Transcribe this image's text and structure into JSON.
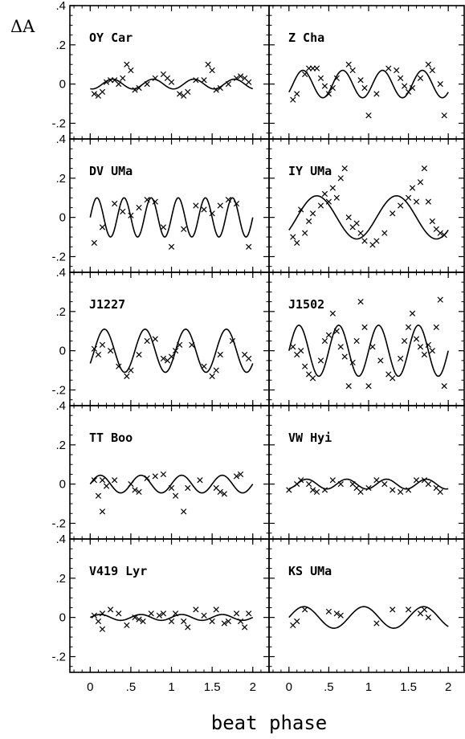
{
  "figure": {
    "ylabel": "ΔA",
    "xlabel": "beat phase"
  },
  "chart_data": {
    "type": "scatter",
    "layout": "5x2 panel grid",
    "xlim": [
      -0.25,
      2.2
    ],
    "ylim": [
      -0.28,
      0.4
    ],
    "x_ticks": [
      0,
      0.5,
      1,
      1.5,
      2
    ],
    "x_tick_labels": [
      "0",
      ".5",
      "1",
      "1.5",
      "2"
    ],
    "y_ticks": [
      -0.2,
      0,
      0.2,
      0.4
    ],
    "y_tick_labels": [
      "-.2",
      "0",
      ".2",
      ".4"
    ],
    "marker": "x",
    "panels": [
      {
        "name": "OY Car",
        "amp": 0.025,
        "phi": 0.15,
        "freq": 2,
        "points": [
          [
            0.05,
            -0.05
          ],
          [
            0.1,
            -0.06
          ],
          [
            0.15,
            -0.04
          ],
          [
            0.2,
            0.01
          ],
          [
            0.25,
            0.02
          ],
          [
            0.3,
            0.02
          ],
          [
            0.35,
            0.0
          ],
          [
            0.4,
            0.03
          ],
          [
            0.45,
            0.1
          ],
          [
            0.5,
            0.07
          ],
          [
            0.55,
            -0.03
          ],
          [
            0.6,
            -0.02
          ],
          [
            0.7,
            0.0
          ],
          [
            0.8,
            0.03
          ],
          [
            0.9,
            0.05
          ],
          [
            0.95,
            0.03
          ],
          [
            1.0,
            0.01
          ],
          [
            1.1,
            -0.05
          ],
          [
            1.15,
            -0.06
          ],
          [
            1.2,
            -0.04
          ],
          [
            1.3,
            0.02
          ],
          [
            1.4,
            0.02
          ],
          [
            1.45,
            0.1
          ],
          [
            1.5,
            0.07
          ],
          [
            1.55,
            -0.03
          ],
          [
            1.6,
            -0.02
          ],
          [
            1.7,
            0.0
          ],
          [
            1.8,
            0.03
          ],
          [
            1.85,
            0.04
          ],
          [
            1.9,
            0.03
          ],
          [
            1.95,
            0.01
          ]
        ]
      },
      {
        "name": "Z Cha",
        "amp": 0.07,
        "phi": 0.05,
        "freq": 2,
        "points": [
          [
            0.05,
            -0.08
          ],
          [
            0.1,
            -0.05
          ],
          [
            0.2,
            0.05
          ],
          [
            0.25,
            0.08
          ],
          [
            0.3,
            0.08
          ],
          [
            0.35,
            0.08
          ],
          [
            0.4,
            0.03
          ],
          [
            0.45,
            -0.01
          ],
          [
            0.5,
            -0.05
          ],
          [
            0.55,
            -0.02
          ],
          [
            0.6,
            0.03
          ],
          [
            0.75,
            0.1
          ],
          [
            0.8,
            0.07
          ],
          [
            0.9,
            0.02
          ],
          [
            0.95,
            -0.02
          ],
          [
            1.0,
            -0.16
          ],
          [
            1.1,
            -0.05
          ],
          [
            1.25,
            0.08
          ],
          [
            1.35,
            0.07
          ],
          [
            1.4,
            0.03
          ],
          [
            1.45,
            -0.01
          ],
          [
            1.5,
            -0.04
          ],
          [
            1.55,
            -0.02
          ],
          [
            1.65,
            0.03
          ],
          [
            1.75,
            0.1
          ],
          [
            1.8,
            0.07
          ],
          [
            1.9,
            0.0
          ],
          [
            1.95,
            -0.16
          ]
        ]
      },
      {
        "name": "DV UMa",
        "amp": 0.1,
        "phi": 0.0,
        "freq": 3,
        "points": [
          [
            0.05,
            -0.13
          ],
          [
            0.15,
            -0.05
          ],
          [
            0.3,
            0.07
          ],
          [
            0.4,
            0.03
          ],
          [
            0.5,
            0.01
          ],
          [
            0.6,
            0.05
          ],
          [
            0.7,
            0.09
          ],
          [
            0.8,
            0.08
          ],
          [
            0.9,
            -0.05
          ],
          [
            1.0,
            -0.15
          ],
          [
            1.15,
            -0.06
          ],
          [
            1.3,
            0.06
          ],
          [
            1.4,
            0.04
          ],
          [
            1.5,
            0.02
          ],
          [
            1.6,
            0.06
          ],
          [
            1.7,
            0.09
          ],
          [
            1.8,
            0.07
          ],
          [
            1.95,
            -0.15
          ]
        ]
      },
      {
        "name": "IY UMa",
        "amp": 0.11,
        "phi": 0.1,
        "freq": 1,
        "points": [
          [
            0.05,
            -0.1
          ],
          [
            0.1,
            -0.13
          ],
          [
            0.15,
            0.04
          ],
          [
            0.2,
            -0.08
          ],
          [
            0.25,
            -0.02
          ],
          [
            0.3,
            0.02
          ],
          [
            0.4,
            0.06
          ],
          [
            0.45,
            0.12
          ],
          [
            0.5,
            0.08
          ],
          [
            0.55,
            0.15
          ],
          [
            0.6,
            0.1
          ],
          [
            0.65,
            0.2
          ],
          [
            0.7,
            0.25
          ],
          [
            0.75,
            0.0
          ],
          [
            0.8,
            -0.05
          ],
          [
            0.85,
            -0.03
          ],
          [
            0.9,
            -0.08
          ],
          [
            0.95,
            -0.12
          ],
          [
            1.05,
            -0.14
          ],
          [
            1.1,
            -0.12
          ],
          [
            1.2,
            -0.08
          ],
          [
            1.3,
            0.02
          ],
          [
            1.4,
            0.06
          ],
          [
            1.5,
            0.1
          ],
          [
            1.55,
            0.15
          ],
          [
            1.6,
            0.08
          ],
          [
            1.65,
            0.18
          ],
          [
            1.7,
            0.25
          ],
          [
            1.75,
            0.08
          ],
          [
            1.8,
            -0.02
          ],
          [
            1.85,
            -0.06
          ],
          [
            1.9,
            -0.08
          ],
          [
            1.95,
            -0.09
          ]
        ]
      },
      {
        "name": "J1227",
        "amp": 0.11,
        "phi": 0.05,
        "freq": 2,
        "points": [
          [
            0.05,
            0.01
          ],
          [
            0.1,
            -0.02
          ],
          [
            0.15,
            0.03
          ],
          [
            0.25,
            0.0
          ],
          [
            0.35,
            -0.08
          ],
          [
            0.45,
            -0.13
          ],
          [
            0.5,
            -0.1
          ],
          [
            0.6,
            -0.02
          ],
          [
            0.7,
            0.05
          ],
          [
            0.8,
            0.06
          ],
          [
            0.9,
            -0.04
          ],
          [
            0.95,
            -0.05
          ],
          [
            1.0,
            -0.03
          ],
          [
            1.05,
            0.0
          ],
          [
            1.1,
            0.03
          ],
          [
            1.25,
            0.03
          ],
          [
            1.4,
            -0.08
          ],
          [
            1.5,
            -0.13
          ],
          [
            1.55,
            -0.1
          ],
          [
            1.6,
            -0.02
          ],
          [
            1.75,
            0.05
          ],
          [
            1.9,
            -0.02
          ],
          [
            1.95,
            -0.04
          ]
        ]
      },
      {
        "name": "J1502",
        "amp": 0.13,
        "phi": 0.0,
        "freq": 2,
        "points": [
          [
            0.05,
            0.02
          ],
          [
            0.1,
            -0.02
          ],
          [
            0.15,
            0.0
          ],
          [
            0.2,
            -0.08
          ],
          [
            0.25,
            -0.12
          ],
          [
            0.3,
            -0.14
          ],
          [
            0.4,
            -0.05
          ],
          [
            0.45,
            0.05
          ],
          [
            0.5,
            0.08
          ],
          [
            0.55,
            0.19
          ],
          [
            0.6,
            0.1
          ],
          [
            0.65,
            0.02
          ],
          [
            0.7,
            -0.03
          ],
          [
            0.75,
            -0.18
          ],
          [
            0.8,
            -0.06
          ],
          [
            0.85,
            0.05
          ],
          [
            0.9,
            0.25
          ],
          [
            0.95,
            0.12
          ],
          [
            1.0,
            -0.18
          ],
          [
            1.05,
            0.02
          ],
          [
            1.15,
            -0.05
          ],
          [
            1.25,
            -0.12
          ],
          [
            1.3,
            -0.14
          ],
          [
            1.4,
            -0.04
          ],
          [
            1.45,
            0.05
          ],
          [
            1.5,
            0.12
          ],
          [
            1.55,
            0.19
          ],
          [
            1.6,
            0.06
          ],
          [
            1.65,
            0.02
          ],
          [
            1.7,
            -0.02
          ],
          [
            1.75,
            0.03
          ],
          [
            1.8,
            0.0
          ],
          [
            1.85,
            0.12
          ],
          [
            1.9,
            0.26
          ],
          [
            1.95,
            -0.18
          ]
        ]
      },
      {
        "name": "TT Boo",
        "amp": 0.045,
        "phi": 0.0,
        "freq": 2,
        "points": [
          [
            0.05,
            0.02
          ],
          [
            0.1,
            -0.06
          ],
          [
            0.15,
            0.02
          ],
          [
            0.2,
            -0.01
          ],
          [
            0.15,
            -0.14
          ],
          [
            0.3,
            0.02
          ],
          [
            0.5,
            0.0
          ],
          [
            0.55,
            -0.03
          ],
          [
            0.6,
            -0.04
          ],
          [
            0.7,
            0.03
          ],
          [
            0.8,
            0.04
          ],
          [
            0.9,
            0.05
          ],
          [
            1.0,
            -0.02
          ],
          [
            1.05,
            -0.06
          ],
          [
            1.15,
            -0.14
          ],
          [
            1.2,
            -0.02
          ],
          [
            1.35,
            0.02
          ],
          [
            1.55,
            -0.02
          ],
          [
            1.6,
            -0.04
          ],
          [
            1.65,
            -0.05
          ],
          [
            1.8,
            0.04
          ],
          [
            1.85,
            0.05
          ]
        ]
      },
      {
        "name": "VW Hyi",
        "amp": 0.025,
        "phi": 0.1,
        "freq": 2,
        "points": [
          [
            0.0,
            -0.03
          ],
          [
            0.1,
            0.0
          ],
          [
            0.15,
            0.02
          ],
          [
            0.25,
            0.0
          ],
          [
            0.3,
            -0.03
          ],
          [
            0.35,
            -0.04
          ],
          [
            0.45,
            -0.03
          ],
          [
            0.55,
            0.02
          ],
          [
            0.65,
            0.0
          ],
          [
            0.8,
            0.0
          ],
          [
            0.85,
            -0.02
          ],
          [
            0.9,
            -0.04
          ],
          [
            1.0,
            -0.02
          ],
          [
            1.1,
            0.02
          ],
          [
            1.2,
            0.0
          ],
          [
            1.3,
            -0.03
          ],
          [
            1.4,
            -0.04
          ],
          [
            1.5,
            -0.03
          ],
          [
            1.6,
            0.02
          ],
          [
            1.7,
            0.02
          ],
          [
            1.75,
            0.0
          ],
          [
            1.85,
            -0.02
          ],
          [
            1.9,
            -0.04
          ]
        ]
      },
      {
        "name": "V419 Lyr",
        "amp": 0.015,
        "phi": 0.0,
        "freq": 2,
        "points": [
          [
            0.05,
            0.01
          ],
          [
            0.1,
            -0.02
          ],
          [
            0.15,
            0.02
          ],
          [
            0.15,
            -0.06
          ],
          [
            0.25,
            0.04
          ],
          [
            0.35,
            0.02
          ],
          [
            0.45,
            -0.04
          ],
          [
            0.55,
            0.0
          ],
          [
            0.6,
            -0.01
          ],
          [
            0.65,
            -0.02
          ],
          [
            0.75,
            0.02
          ],
          [
            0.85,
            0.01
          ],
          [
            0.9,
            0.02
          ],
          [
            1.0,
            -0.02
          ],
          [
            1.05,
            0.02
          ],
          [
            1.15,
            -0.02
          ],
          [
            1.2,
            -0.05
          ],
          [
            1.3,
            0.04
          ],
          [
            1.4,
            0.01
          ],
          [
            1.5,
            -0.02
          ],
          [
            1.55,
            0.04
          ],
          [
            1.65,
            -0.03
          ],
          [
            1.7,
            -0.02
          ],
          [
            1.8,
            0.02
          ],
          [
            1.85,
            -0.02
          ],
          [
            1.9,
            -0.05
          ],
          [
            1.95,
            0.02
          ]
        ]
      },
      {
        "name": "KS UMa",
        "amp": 0.055,
        "phi": 0.0,
        "freq": 1.33,
        "points": [
          [
            0.05,
            -0.04
          ],
          [
            0.1,
            -0.02
          ],
          [
            0.2,
            0.04
          ],
          [
            0.5,
            0.03
          ],
          [
            0.6,
            0.02
          ],
          [
            0.65,
            0.01
          ],
          [
            1.1,
            -0.03
          ],
          [
            1.3,
            0.04
          ],
          [
            1.5,
            0.04
          ],
          [
            1.65,
            0.02
          ],
          [
            1.7,
            0.04
          ],
          [
            1.75,
            0.0
          ]
        ]
      }
    ]
  }
}
